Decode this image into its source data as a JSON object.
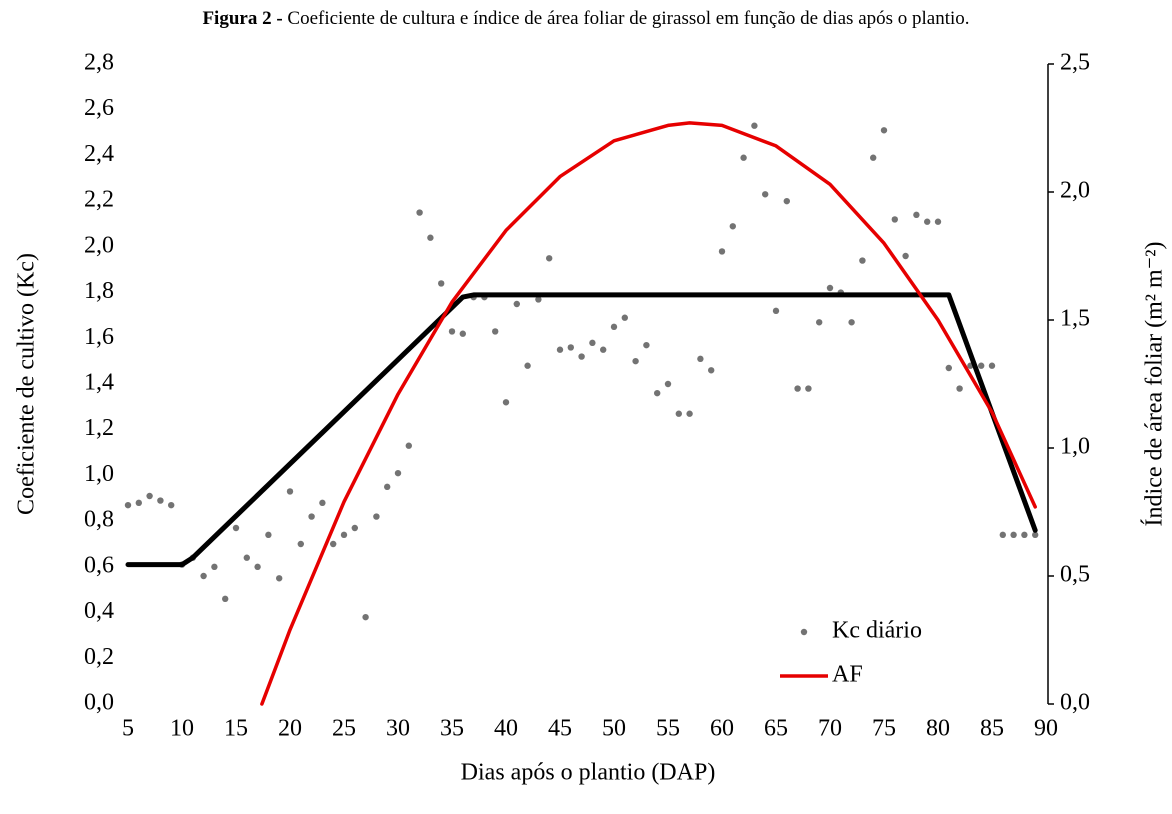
{
  "chart_data": {
    "type": "line",
    "figure_label": "Figura 2 -",
    "title": "Coeficiente de cultura e índice de área foliar de girassol em função de dias após o plantio.",
    "x_label": "Dias após o plantio (DAP)",
    "y_label": "Coeficiente de cultivo (Kc)",
    "y2_label": "Índice de área foliar (m² m⁻²)",
    "xlim": [
      5,
      90
    ],
    "xticks": [
      5,
      10,
      15,
      20,
      25,
      30,
      35,
      40,
      45,
      50,
      55,
      60,
      65,
      70,
      75,
      80,
      85,
      90
    ],
    "ylim": [
      0,
      2.8
    ],
    "yticks": [
      {
        "value": 0,
        "label": "0,0"
      },
      {
        "value": 0.2,
        "label": "0,2"
      },
      {
        "value": 0.4,
        "label": "0,4"
      },
      {
        "value": 0.6,
        "label": "0,6"
      },
      {
        "value": 0.8,
        "label": "0,8"
      },
      {
        "value": 1.0,
        "label": "1,0"
      },
      {
        "value": 1.2,
        "label": "1,2"
      },
      {
        "value": 1.4,
        "label": "1,4"
      },
      {
        "value": 1.6,
        "label": "1,6"
      },
      {
        "value": 1.8,
        "label": "1,8"
      },
      {
        "value": 2.0,
        "label": "2,0"
      },
      {
        "value": 2.2,
        "label": "2,2"
      },
      {
        "value": 2.4,
        "label": "2,4"
      },
      {
        "value": 2.6,
        "label": "2,6"
      },
      {
        "value": 2.8,
        "label": "2,8"
      }
    ],
    "y2lim": [
      0,
      2.5
    ],
    "y2ticks": [
      {
        "value": 0,
        "label": "0,0"
      },
      {
        "value": 0.5,
        "label": "0,5"
      },
      {
        "value": 1.0,
        "label": "1,0"
      },
      {
        "value": 1.5,
        "label": "1,5"
      },
      {
        "value": 2.0,
        "label": "2,0"
      },
      {
        "value": 2.5,
        "label": "2,5"
      }
    ],
    "grid": false,
    "legend": "lower right",
    "series": [
      {
        "name": "Kc diário",
        "type": "scatter",
        "color": "#737373",
        "x": [
          5,
          6,
          7,
          8,
          9,
          10,
          11,
          12,
          13,
          14,
          15,
          16,
          17,
          18,
          19,
          20,
          21,
          22,
          23,
          24,
          25,
          26,
          27,
          28,
          29,
          30,
          31,
          32,
          33,
          34,
          35,
          36,
          37,
          38,
          39,
          40,
          41,
          42,
          43,
          44,
          45,
          46,
          47,
          48,
          49,
          50,
          51,
          52,
          53,
          54,
          55,
          56,
          57,
          58,
          59,
          60,
          61,
          62,
          63,
          64,
          65,
          66,
          67,
          68,
          69,
          70,
          71,
          72,
          73,
          74,
          75,
          76,
          77,
          78,
          79,
          80,
          81,
          82,
          83,
          84,
          85,
          86,
          87,
          88,
          89
        ],
        "values": [
          0.87,
          0.88,
          0.91,
          0.89,
          0.87,
          0.61,
          0.64,
          0.56,
          0.6,
          0.46,
          0.77,
          0.64,
          0.6,
          0.74,
          0.55,
          0.93,
          0.7,
          0.82,
          0.88,
          0.7,
          0.74,
          0.77,
          0.38,
          0.82,
          0.95,
          1.01,
          1.13,
          2.15,
          2.04,
          1.84,
          1.63,
          1.62,
          1.78,
          1.78,
          1.63,
          1.32,
          1.75,
          1.48,
          1.77,
          1.95,
          1.55,
          1.56,
          1.52,
          1.58,
          1.55,
          1.65,
          1.69,
          1.5,
          1.57,
          1.36,
          1.4,
          1.27,
          1.27,
          1.51,
          1.46,
          1.98,
          2.09,
          2.39,
          2.53,
          2.23,
          1.72,
          2.2,
          1.38,
          1.38,
          1.67,
          1.82,
          1.8,
          1.67,
          1.94,
          2.39,
          2.51,
          2.12,
          1.96,
          2.14,
          2.11,
          2.11,
          1.47,
          1.38,
          1.48,
          1.48,
          1.48,
          0.74,
          0.74,
          0.74,
          0.74
        ]
      },
      {
        "type": "line",
        "color": "#000000",
        "x": [
          5,
          10,
          11,
          36,
          37,
          80,
          81,
          89
        ],
        "values": [
          0.61,
          0.61,
          0.64,
          1.78,
          1.79,
          1.79,
          1.79,
          0.76
        ]
      },
      {
        "name": "AF",
        "type": "line",
        "color": "#e60000",
        "axis": "y2",
        "x": [
          17.4,
          20,
          25,
          30,
          35,
          40,
          45,
          50,
          55,
          57,
          60,
          65,
          70,
          75,
          80,
          85,
          89
        ],
        "values": [
          0,
          0.29,
          0.79,
          1.21,
          1.57,
          1.85,
          2.06,
          2.2,
          2.26,
          2.27,
          2.26,
          2.18,
          2.03,
          1.8,
          1.5,
          1.14,
          0.77
        ]
      }
    ]
  }
}
